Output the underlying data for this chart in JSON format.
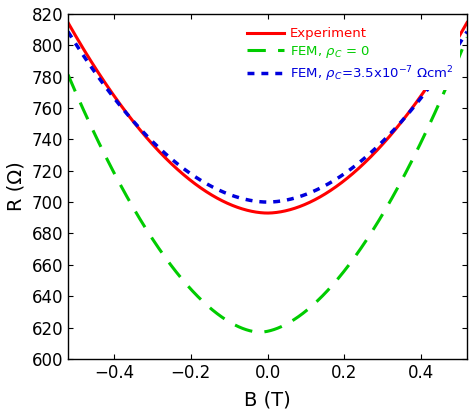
{
  "xlim": [
    -0.52,
    0.52
  ],
  "ylim": [
    600,
    820
  ],
  "xlabel": "B (T)",
  "ylabel": "R (Ω)",
  "yticks": [
    600,
    620,
    640,
    660,
    680,
    700,
    720,
    740,
    760,
    780,
    800,
    820
  ],
  "xticks": [
    -0.4,
    -0.2,
    0.0,
    0.2,
    0.4
  ],
  "legend": [
    {
      "label": "Experiment",
      "color": "#ff0000",
      "linestyle": "solid",
      "linewidth": 2.2
    },
    {
      "label": "FEM, $\\rho_C$ = 0",
      "color": "#00cc00",
      "linestyle": "dashed",
      "linewidth": 2.2
    },
    {
      "label": "FEM, $\\rho_C$=3.5x10$^{-7}$ $\\Omega$cm$^2$",
      "color": "#0000dd",
      "linestyle": "dotted",
      "linewidth": 2.5
    }
  ],
  "background_color": "#ffffff",
  "experiment": {
    "R_min": 693,
    "R_min_B": 0.0,
    "R_at_neg05": 806,
    "R_at_pos05": 810,
    "shape_power": 1.85
  },
  "fem_rho0": {
    "R_min": 617,
    "R_min_B": -0.02,
    "R_at_neg05": 770,
    "R_at_pos05": 770,
    "shape_power": 1.75
  },
  "fem_rho_c": {
    "R_min": 700,
    "R_min_B": 0.0,
    "R_at_neg05": 801,
    "R_at_pos05": 801,
    "shape_power": 1.88
  }
}
